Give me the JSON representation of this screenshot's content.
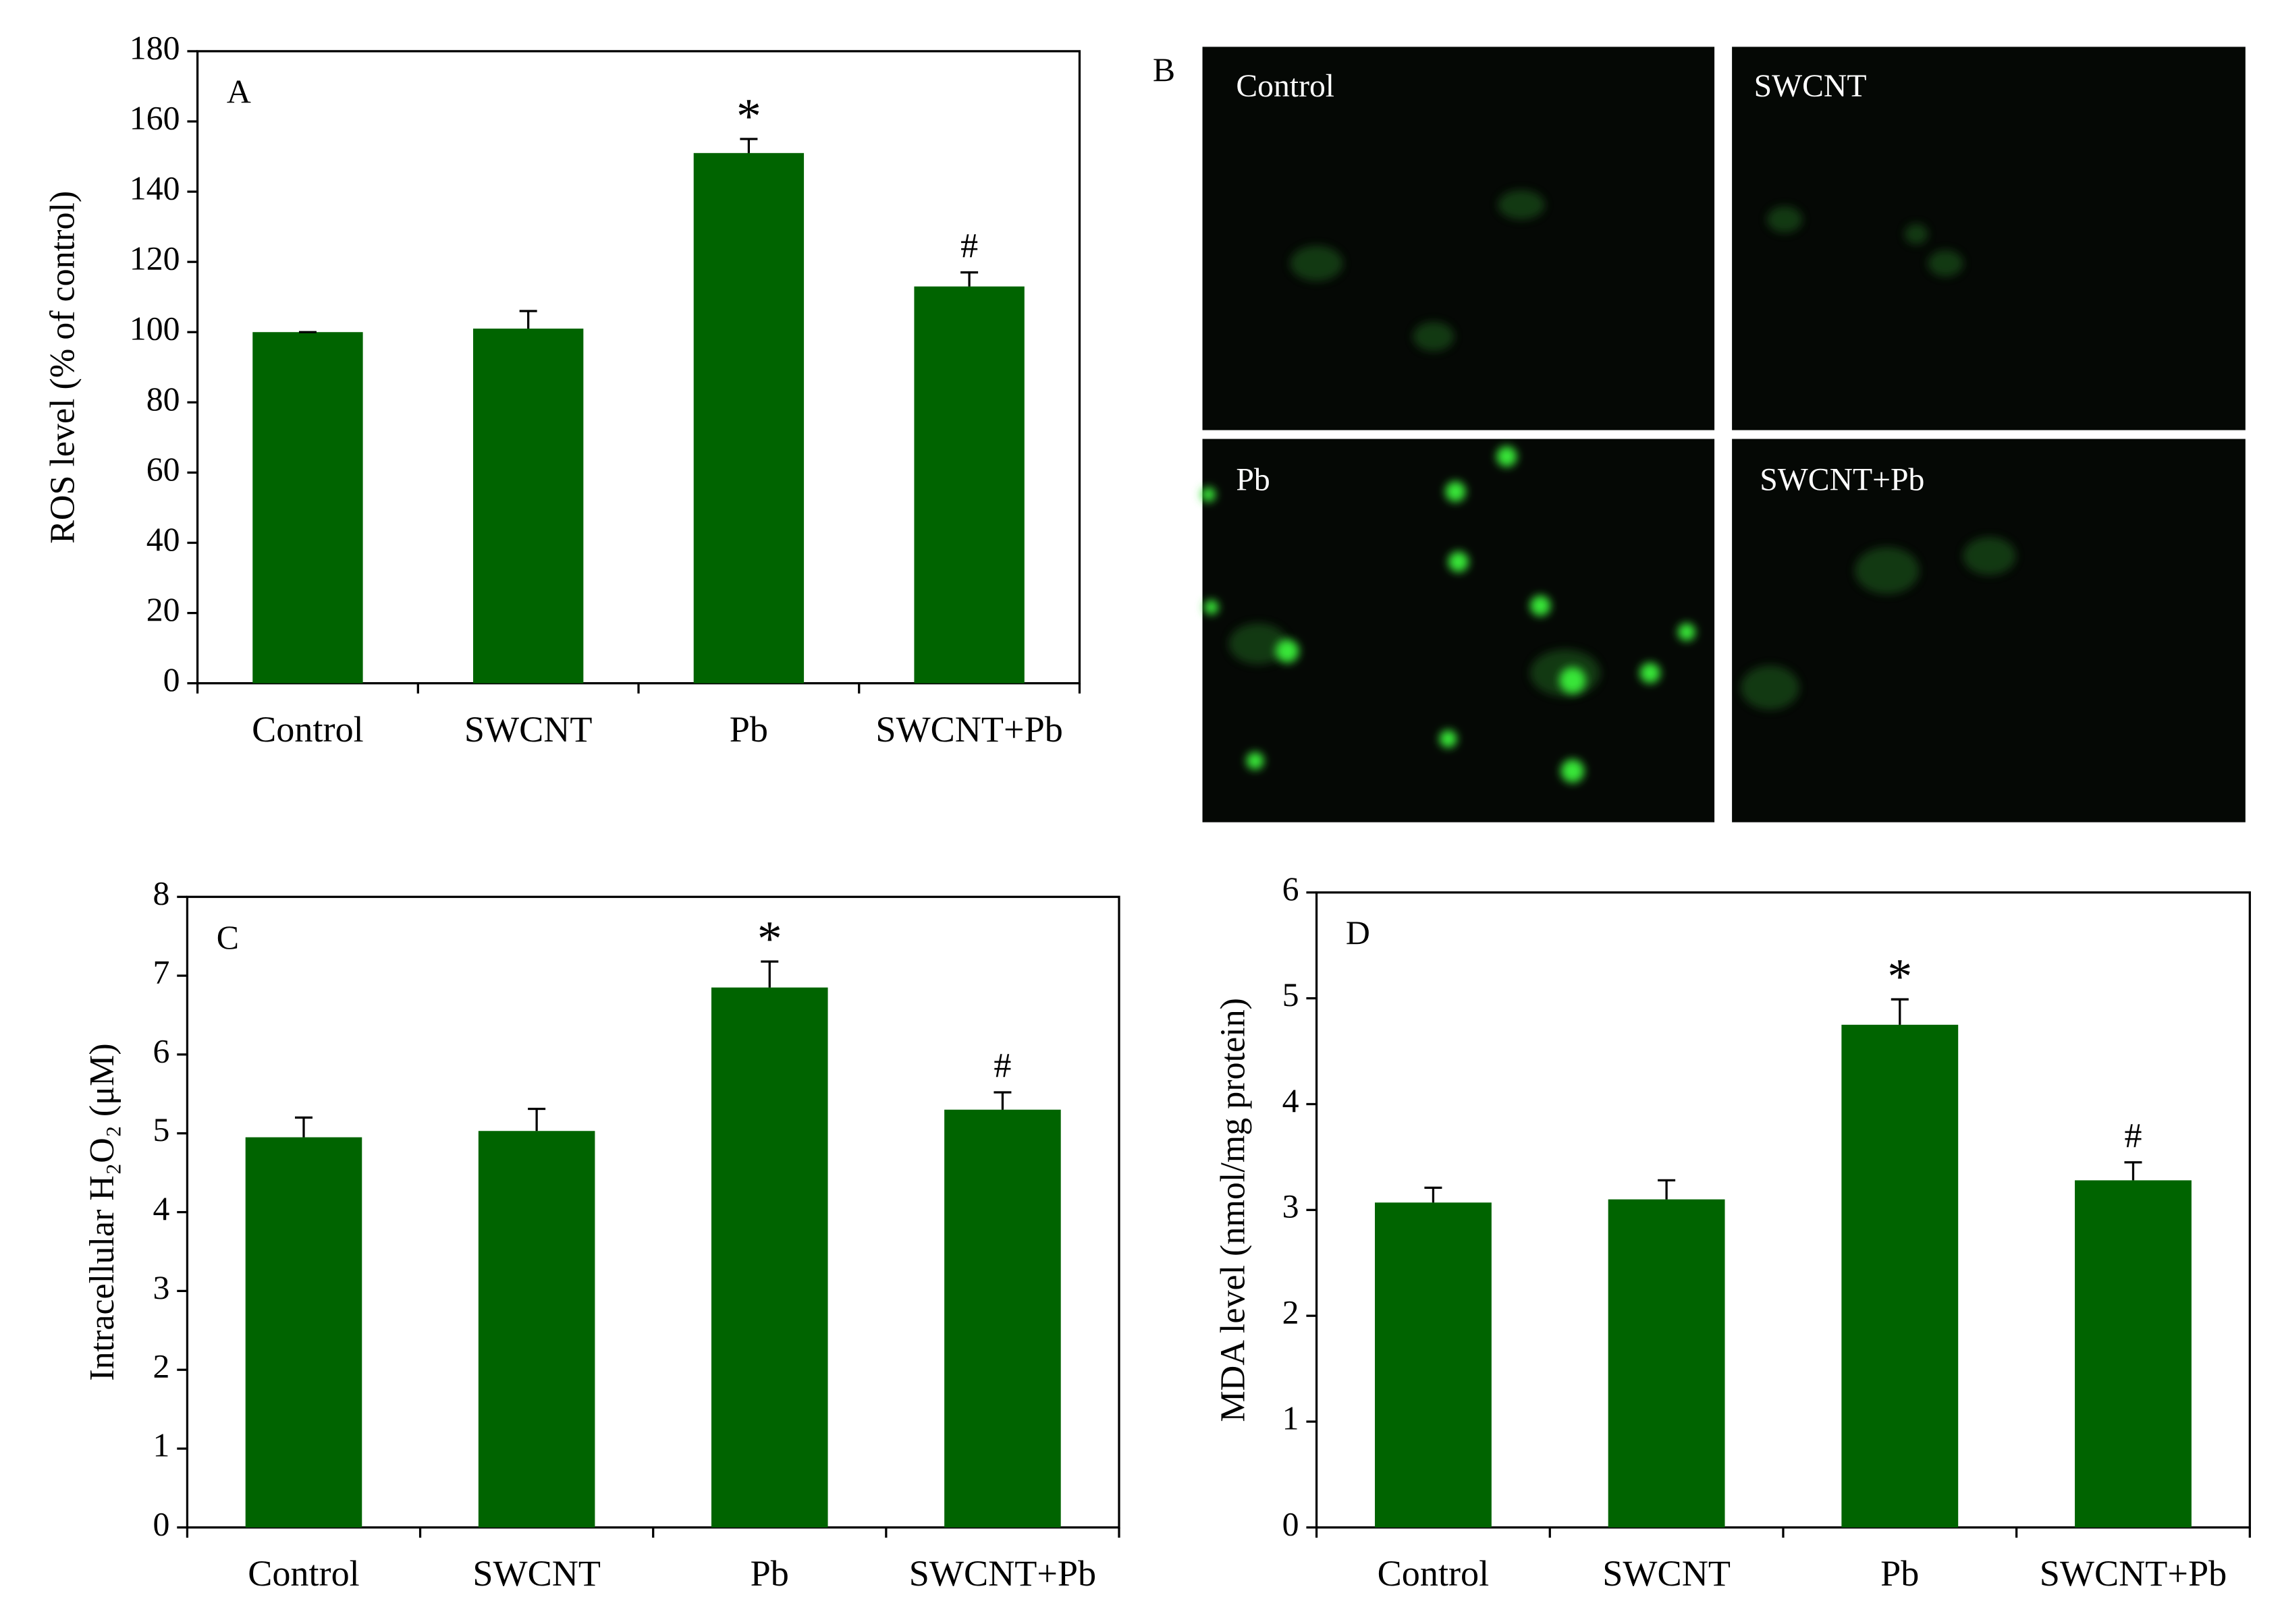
{
  "chart_data": [
    {
      "type": "bar",
      "panel": "A",
      "ylabel": "ROS level (% of control)",
      "categories": [
        "Control",
        "SWCNT",
        "Pb",
        "SWCNT+Pb"
      ],
      "values": [
        100,
        101,
        151,
        113
      ],
      "errors": [
        0,
        5,
        4,
        4
      ],
      "annotations": [
        null,
        null,
        "*",
        "#"
      ],
      "color": "#006400",
      "ylim": [
        0,
        180
      ],
      "yticks": [
        0,
        20,
        40,
        60,
        80,
        100,
        120,
        140,
        160,
        180
      ],
      "grid": false
    },
    {
      "type": "bar",
      "panel": "C",
      "ylabel": "Intracellular H₂O₂ (μM)",
      "categories": [
        "Control",
        "SWCNT",
        "Pb",
        "SWCNT+Pb"
      ],
      "values": [
        4.95,
        5.03,
        6.85,
        5.3
      ],
      "errors": [
        0.25,
        0.28,
        0.33,
        0.22
      ],
      "annotations": [
        null,
        null,
        "*",
        "#"
      ],
      "color": "#006400",
      "ylim": [
        0,
        8
      ],
      "yticks": [
        0,
        1,
        2,
        3,
        4,
        5,
        6,
        7,
        8
      ],
      "grid": false
    },
    {
      "type": "bar",
      "panel": "D",
      "ylabel": "MDA level (nmol/mg protein)",
      "categories": [
        "Control",
        "SWCNT",
        "Pb",
        "SWCNT+Pb"
      ],
      "values": [
        3.07,
        3.1,
        4.75,
        3.28
      ],
      "errors": [
        0.14,
        0.18,
        0.24,
        0.17
      ],
      "annotations": [
        null,
        null,
        "*",
        "#"
      ],
      "color": "#006400",
      "ylim": [
        0,
        6
      ],
      "yticks": [
        0,
        1,
        2,
        3,
        4,
        5,
        6
      ],
      "grid": false
    }
  ],
  "micrographs": {
    "panel": "B",
    "titles": [
      "Control",
      "SWCNT",
      "Pb",
      "SWCNT+Pb"
    ]
  }
}
